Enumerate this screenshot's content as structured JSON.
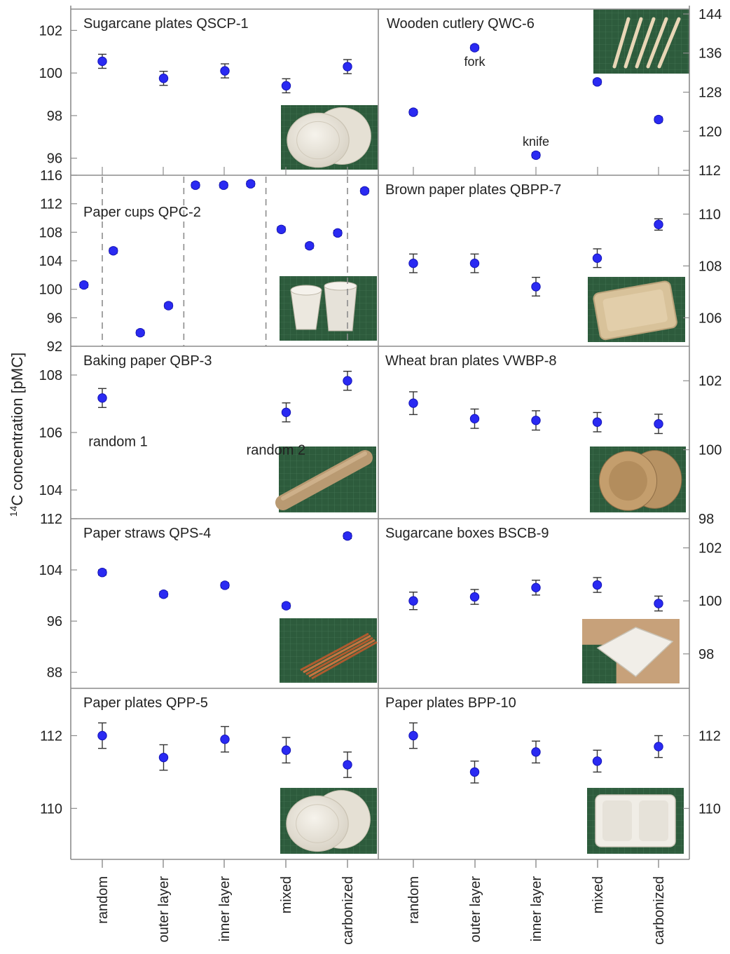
{
  "figure": {
    "ylabel_sup": "14",
    "ylabel_rest": "C concentration [pMC]",
    "categories": [
      "random",
      "outer layer",
      "inner layer",
      "mixed",
      "carbonized"
    ],
    "colors": {
      "marker": "#2a2af2",
      "marker_edge": "#1414b8",
      "frame": "#8c8c8c",
      "error": "#333333",
      "dashes": "#8c8c8c"
    }
  },
  "chart_data": [
    {
      "type": "scatter",
      "panel": "left-1",
      "title": "Sugarcane plates  QSCP-1",
      "axis_side": "left",
      "ylim": [
        95.2,
        103
      ],
      "yticks": [
        96,
        98,
        100,
        102
      ],
      "x": [
        0,
        1,
        2,
        3,
        4
      ],
      "values": [
        100.55,
        99.75,
        100.1,
        99.4,
        100.3
      ],
      "errors": [
        0.33,
        0.33,
        0.33,
        0.33,
        0.33
      ],
      "photo": "plates"
    },
    {
      "type": "scatter",
      "panel": "left-2",
      "title": "Paper cups  QPC-2",
      "axis_side": "left",
      "ylim": [
        92,
        116
      ],
      "yticks": [
        92,
        96,
        100,
        104,
        108,
        112,
        116
      ],
      "x": [
        -0.3,
        0.18,
        0.62,
        1.08,
        1.52,
        1.98,
        2.42,
        2.92,
        3.38,
        3.84,
        4.28
      ],
      "values": [
        100.6,
        105.4,
        93.9,
        97.7,
        114.6,
        114.6,
        114.8,
        108.4,
        106.1,
        107.9,
        113.8
      ],
      "errors": [
        0.35,
        0.35,
        0.35,
        0.35,
        0.35,
        0.35,
        0.35,
        0.35,
        0.35,
        0.35,
        0.35
      ],
      "dividers": [
        0,
        1.33,
        2.67,
        4
      ],
      "photo": "cups"
    },
    {
      "type": "scatter",
      "panel": "left-3",
      "title": "Baking paper QBP-3",
      "axis_side": "left",
      "ylim": [
        103,
        109
      ],
      "yticks": [
        104,
        106,
        108
      ],
      "x": [
        0,
        3,
        4
      ],
      "values": [
        107.2,
        106.7,
        107.8
      ],
      "errors": [
        0.33,
        0.33,
        0.33
      ],
      "annotations": [
        {
          "text": "random 1",
          "x": 0.3,
          "y": 105.7
        },
        {
          "text": "random 2",
          "x": 3.15,
          "y": 105.4
        }
      ],
      "photo": "roll"
    },
    {
      "type": "scatter",
      "panel": "left-4",
      "title": "Paper straws QPS-4",
      "axis_side": "left",
      "ylim": [
        85.5,
        112
      ],
      "yticks": [
        88,
        96,
        104,
        112
      ],
      "x": [
        0,
        1,
        2,
        3,
        4
      ],
      "values": [
        103.6,
        100.2,
        101.6,
        98.4,
        109.3
      ],
      "errors": [
        0.4,
        0.4,
        0.4,
        0.4,
        0.4
      ],
      "photo": "straws"
    },
    {
      "type": "scatter",
      "panel": "left-5",
      "title": "Paper plates QPP-5",
      "axis_side": "left",
      "ylim": [
        108.6,
        113.3
      ],
      "yticks": [
        110,
        112
      ],
      "x": [
        0,
        1,
        2,
        3,
        4
      ],
      "values": [
        112.0,
        111.4,
        111.9,
        111.6,
        111.2
      ],
      "errors": [
        0.35,
        0.35,
        0.35,
        0.35,
        0.35
      ],
      "photo": "plates"
    },
    {
      "type": "scatter",
      "panel": "right-1",
      "title": "Wooden cutlery QWC-6",
      "axis_side": "right",
      "ylim": [
        111,
        145
      ],
      "yticks": [
        112,
        120,
        128,
        136,
        144
      ],
      "x": [
        0,
        1,
        2,
        3,
        4
      ],
      "values": [
        123.9,
        137.1,
        115.1,
        130.1,
        122.4
      ],
      "errors": [
        0.5,
        0.5,
        0.5,
        0.5,
        0.5
      ],
      "annotations": [
        {
          "text": "fork",
          "x": 1,
          "y": 134.4
        },
        {
          "text": "knife",
          "x": 2,
          "y": 118.0
        }
      ],
      "photo": "cutlery"
    },
    {
      "type": "scatter",
      "panel": "right-2",
      "title": "Brown paper plates QBPP-7",
      "axis_side": "right",
      "ylim": [
        104.9,
        111.5
      ],
      "yticks": [
        106,
        108,
        110
      ],
      "x": [
        0,
        1,
        2,
        3,
        4
      ],
      "values": [
        108.1,
        108.1,
        107.2,
        108.3,
        109.6
      ],
      "errors": [
        0.36,
        0.36,
        0.36,
        0.36,
        0.22
      ],
      "photo": "tray"
    },
    {
      "type": "scatter",
      "panel": "right-3",
      "title": "Wheat bran plates VWBP-8",
      "axis_side": "right",
      "ylim": [
        98,
        103
      ],
      "yticks": [
        98,
        100,
        102
      ],
      "x": [
        0,
        1,
        2,
        3,
        4
      ],
      "values": [
        101.35,
        100.9,
        100.85,
        100.8,
        100.75
      ],
      "errors": [
        0.33,
        0.28,
        0.28,
        0.28,
        0.28
      ],
      "photo": "bran"
    },
    {
      "type": "scatter",
      "panel": "right-4",
      "title": "Sugarcane boxes BSCB-9",
      "axis_side": "right",
      "ylim": [
        96.7,
        103.1
      ],
      "yticks": [
        98,
        100,
        102
      ],
      "x": [
        0,
        1,
        2,
        3,
        4
      ],
      "values": [
        100.0,
        100.15,
        100.5,
        100.6,
        99.9
      ],
      "errors": [
        0.33,
        0.28,
        0.28,
        0.28,
        0.28
      ],
      "photo": "box"
    },
    {
      "type": "scatter",
      "panel": "right-5",
      "title": "Paper plates BPP-10",
      "axis_side": "right",
      "ylim": [
        108.6,
        113.3
      ],
      "yticks": [
        110,
        112
      ],
      "x": [
        0,
        1,
        2,
        3,
        4
      ],
      "values": [
        112.0,
        111.0,
        111.55,
        111.3,
        111.7
      ],
      "errors": [
        0.35,
        0.3,
        0.3,
        0.3,
        0.3
      ],
      "photo": "container"
    }
  ]
}
